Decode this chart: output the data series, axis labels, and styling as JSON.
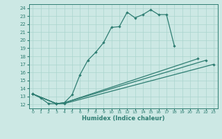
{
  "xlabel": "Humidex (Indice chaleur)",
  "ylabel": "",
  "bg_color": "#cce8e4",
  "grid_color": "#aad4ce",
  "line_color": "#2e7d72",
  "xlim": [
    -0.5,
    23.5
  ],
  "ylim": [
    11.5,
    24.5
  ],
  "xticks": [
    0,
    1,
    2,
    3,
    4,
    5,
    6,
    7,
    8,
    9,
    10,
    11,
    12,
    13,
    14,
    15,
    16,
    17,
    18,
    19,
    20,
    21,
    22,
    23
  ],
  "yticks": [
    12,
    13,
    14,
    15,
    16,
    17,
    18,
    19,
    20,
    21,
    22,
    23,
    24
  ],
  "main_line": {
    "x": [
      0,
      1,
      2,
      3,
      4,
      5,
      6,
      7,
      8,
      9,
      10,
      11,
      12,
      13,
      14,
      15,
      16,
      17,
      18
    ],
    "y": [
      13.3,
      12.8,
      12.1,
      12.1,
      12.2,
      13.2,
      15.7,
      17.5,
      18.5,
      19.7,
      21.6,
      21.7,
      23.5,
      22.8,
      23.2,
      23.8,
      23.2,
      23.2,
      19.3
    ]
  },
  "straight_lines": [
    {
      "x": [
        0,
        3,
        4,
        23
      ],
      "y": [
        13.3,
        12.1,
        12.1,
        17.0
      ]
    },
    {
      "x": [
        0,
        3,
        4,
        22
      ],
      "y": [
        13.3,
        12.1,
        12.2,
        17.5
      ]
    },
    {
      "x": [
        0,
        3,
        4,
        21
      ],
      "y": [
        13.3,
        12.1,
        12.2,
        17.7
      ]
    }
  ]
}
